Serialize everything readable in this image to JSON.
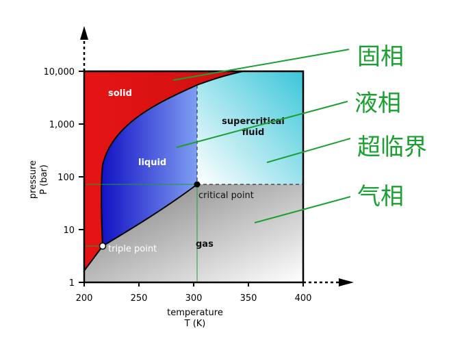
{
  "chart_data": {
    "type": "phase-diagram",
    "xlabel_line1": "temperature",
    "xlabel_line2": "T (K)",
    "ylabel_line1": "pressure",
    "ylabel_line2": "P (bar)",
    "x_ticks": [
      "200",
      "250",
      "300",
      "350",
      "400"
    ],
    "y_ticks": [
      "1",
      "10",
      "100",
      "1,000",
      "10,000"
    ],
    "xlim": [
      200,
      400
    ],
    "ylim": [
      1,
      10000
    ],
    "y_scale": "log",
    "regions": {
      "solid": "solid",
      "liquid": "liquid",
      "supercritical_line1": "supercritical",
      "supercritical_line2": "fluid",
      "gas": "gas"
    },
    "points": {
      "triple_point": {
        "label": "triple point",
        "T": 216.6,
        "P": 5.1
      },
      "critical_point": {
        "label": "critical point",
        "T": 304.1,
        "P": 73.8
      }
    }
  },
  "annotations": {
    "solid_phase": "固相",
    "liquid_phase": "液相",
    "supercritical": "超临界",
    "gas_phase": "气相"
  },
  "colors": {
    "solid": "#e21818",
    "liquid": "#2a2ad6",
    "supercritical": "#4ccbdc",
    "gas": "#9a9a9a",
    "annotation": "#19a030"
  }
}
